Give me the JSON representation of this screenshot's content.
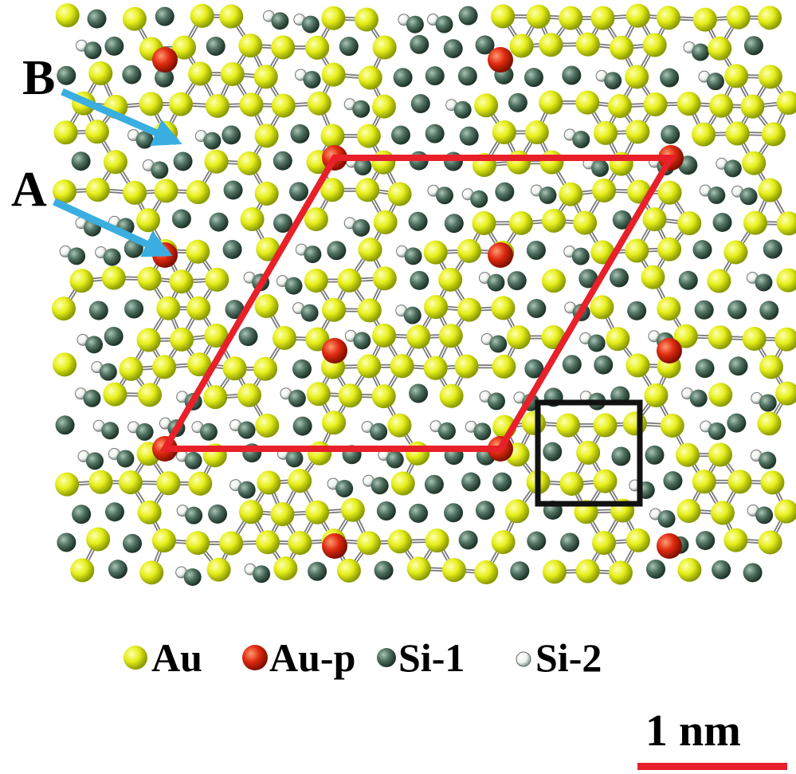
{
  "labels": {
    "b": "B",
    "a": "A"
  },
  "legend": [
    "Au",
    "Au-p",
    "Si-1",
    "Si-2"
  ],
  "scale_bar": "1 nm"
}
